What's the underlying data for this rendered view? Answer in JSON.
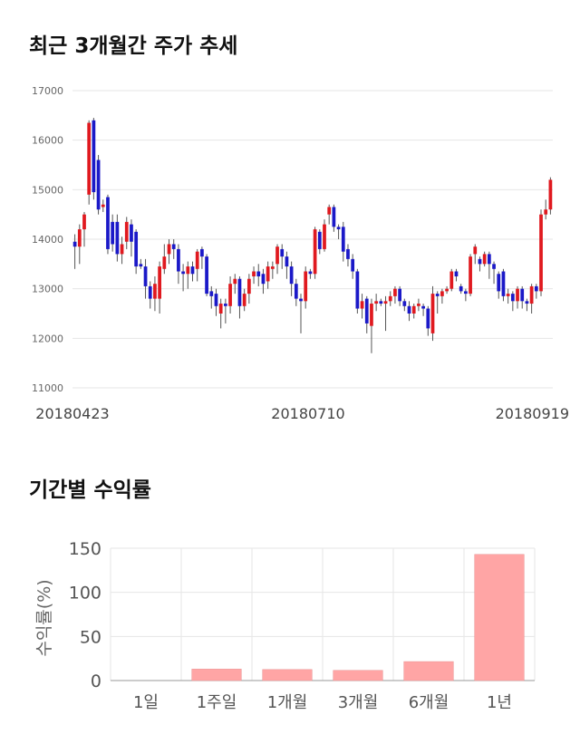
{
  "sections": {
    "price_title": "최근 3개월간 주가 추세",
    "returns_title": "기간별 수익률"
  },
  "colors": {
    "up": "#e0191f",
    "down": "#1b19c8",
    "wick": "#555555",
    "return_bar": "#ffa5a5",
    "grid": "#e6e6e6"
  },
  "chart_data": [
    {
      "type": "candlestick",
      "title": "최근 3개월간 주가 추세",
      "yticks": [
        11000,
        12000,
        13000,
        14000,
        15000,
        16000,
        17000
      ],
      "ylim": [
        11000,
        17000
      ],
      "xtick_labels": [
        "20180423",
        "20180710",
        "20180919"
      ],
      "grid": true,
      "candles": [
        [
          13950,
          13850,
          14100,
          13400
        ],
        [
          13850,
          14200,
          14300,
          13500
        ],
        [
          14200,
          14500,
          14550,
          13850
        ],
        [
          14900,
          16350,
          16400,
          14700
        ],
        [
          16400,
          14950,
          16450,
          14800
        ],
        [
          15600,
          14600,
          15700,
          14500
        ],
        [
          14650,
          14700,
          14800,
          14550
        ],
        [
          14850,
          13800,
          14900,
          13700
        ],
        [
          14350,
          13900,
          14500,
          13750
        ],
        [
          14350,
          13700,
          14500,
          13550
        ],
        [
          13700,
          13900,
          14050,
          13500
        ],
        [
          13950,
          14350,
          14450,
          13800
        ],
        [
          14300,
          13950,
          14400,
          13650
        ],
        [
          14150,
          13450,
          14200,
          13300
        ],
        [
          13500,
          13450,
          13600,
          13400
        ],
        [
          13450,
          13050,
          13600,
          12800
        ],
        [
          13050,
          12800,
          13150,
          12600
        ],
        [
          12800,
          13100,
          13250,
          12550
        ],
        [
          12800,
          13450,
          13550,
          12500
        ],
        [
          13400,
          13650,
          13900,
          13300
        ],
        [
          13700,
          13900,
          14000,
          13500
        ],
        [
          13900,
          13800,
          14000,
          13600
        ],
        [
          13800,
          13350,
          13900,
          13100
        ],
        [
          13350,
          13300,
          13500,
          12950
        ],
        [
          13300,
          13450,
          13550,
          13000
        ],
        [
          13450,
          13300,
          13550,
          13150
        ],
        [
          13400,
          13750,
          13800,
          13150
        ],
        [
          13800,
          13650,
          13850,
          13400
        ],
        [
          13650,
          12900,
          13700,
          12850
        ],
        [
          12950,
          12850,
          13050,
          12600
        ],
        [
          12900,
          12650,
          13000,
          12450
        ],
        [
          12500,
          12700,
          12800,
          12200
        ],
        [
          12700,
          12650,
          12800,
          12300
        ],
        [
          12650,
          13100,
          13250,
          12500
        ],
        [
          13100,
          13200,
          13300,
          12900
        ],
        [
          13200,
          12650,
          13250,
          12400
        ],
        [
          12650,
          12900,
          13000,
          12550
        ],
        [
          12900,
          13200,
          13300,
          12700
        ],
        [
          13250,
          13350,
          13450,
          13100
        ],
        [
          13350,
          13250,
          13500,
          13050
        ],
        [
          13300,
          13100,
          13400,
          12900
        ],
        [
          13150,
          13450,
          13550,
          13000
        ],
        [
          13400,
          13450,
          13550,
          13200
        ],
        [
          13500,
          13850,
          13900,
          13300
        ],
        [
          13800,
          13650,
          13900,
          13400
        ],
        [
          13650,
          13450,
          13750,
          13200
        ],
        [
          13450,
          13100,
          13550,
          12850
        ],
        [
          13100,
          12800,
          13200,
          12650
        ],
        [
          12800,
          12750,
          12900,
          12100
        ],
        [
          12750,
          13350,
          13450,
          12600
        ],
        [
          13350,
          13300,
          13400,
          13200
        ],
        [
          13300,
          14200,
          14250,
          13200
        ],
        [
          14150,
          13800,
          14200,
          13700
        ],
        [
          13800,
          14300,
          14400,
          13750
        ],
        [
          14500,
          14650,
          14700,
          14300
        ],
        [
          14650,
          14250,
          14700,
          14150
        ],
        [
          14250,
          14200,
          14300,
          14000
        ],
        [
          14250,
          13750,
          14350,
          13550
        ],
        [
          13800,
          13600,
          13900,
          13450
        ],
        [
          13600,
          13350,
          13700,
          13200
        ],
        [
          13350,
          12600,
          13400,
          12500
        ],
        [
          12600,
          12750,
          12900,
          12400
        ],
        [
          12800,
          12300,
          12850,
          12100
        ],
        [
          12250,
          12700,
          12800,
          11700
        ],
        [
          12700,
          12750,
          12900,
          12550
        ],
        [
          12750,
          12700,
          12800,
          12650
        ],
        [
          12700,
          12750,
          12850,
          12150
        ],
        [
          12750,
          12850,
          12950,
          12650
        ],
        [
          12850,
          13000,
          13050,
          12700
        ],
        [
          13000,
          12750,
          13050,
          12650
        ],
        [
          12750,
          12650,
          12800,
          12550
        ],
        [
          12650,
          12500,
          12750,
          12350
        ],
        [
          12500,
          12650,
          12700,
          12400
        ],
        [
          12650,
          12700,
          12800,
          12550
        ],
        [
          12650,
          12600,
          12700,
          12450
        ],
        [
          12600,
          12200,
          12650,
          12050
        ],
        [
          12100,
          12900,
          13050,
          11950
        ],
        [
          12900,
          12850,
          12950,
          12500
        ],
        [
          12850,
          12950,
          13000,
          12700
        ],
        [
          12950,
          13000,
          13050,
          12900
        ],
        [
          13000,
          13350,
          13400,
          12950
        ],
        [
          13350,
          13250,
          13400,
          13150
        ],
        [
          13050,
          12950,
          13100,
          12900
        ],
        [
          12950,
          12900,
          13000,
          12750
        ],
        [
          12900,
          13650,
          13700,
          12850
        ],
        [
          13700,
          13850,
          13900,
          13500
        ],
        [
          13600,
          13500,
          13650,
          13350
        ],
        [
          13500,
          13700,
          13750,
          13450
        ],
        [
          13700,
          13500,
          13750,
          13200
        ],
        [
          13500,
          13400,
          13550,
          13100
        ],
        [
          13300,
          12950,
          13350,
          12800
        ],
        [
          13350,
          12850,
          13400,
          12750
        ],
        [
          12850,
          12900,
          13000,
          12700
        ],
        [
          12900,
          12750,
          12950,
          12550
        ],
        [
          12750,
          13000,
          13050,
          12600
        ],
        [
          13000,
          12750,
          13050,
          12600
        ],
        [
          12750,
          12700,
          12800,
          12550
        ],
        [
          12700,
          13050,
          13100,
          12500
        ],
        [
          13050,
          12950,
          13100,
          12800
        ],
        [
          12950,
          14500,
          14600,
          12850
        ],
        [
          14500,
          14600,
          14800,
          14400
        ],
        [
          14600,
          15200,
          15250,
          14500
        ]
      ]
    },
    {
      "type": "bar",
      "title": "기간별 수익률",
      "categories": [
        "1일",
        "1주일",
        "1개월",
        "3개월",
        "6개월",
        "1년"
      ],
      "values": [
        0.0,
        13.0,
        12.5,
        11.5,
        21.5,
        143.0
      ],
      "ylabel": "수익률(%)",
      "yticks": [
        0,
        50,
        100,
        150
      ],
      "ylim": [
        0,
        150
      ],
      "grid": true
    }
  ]
}
